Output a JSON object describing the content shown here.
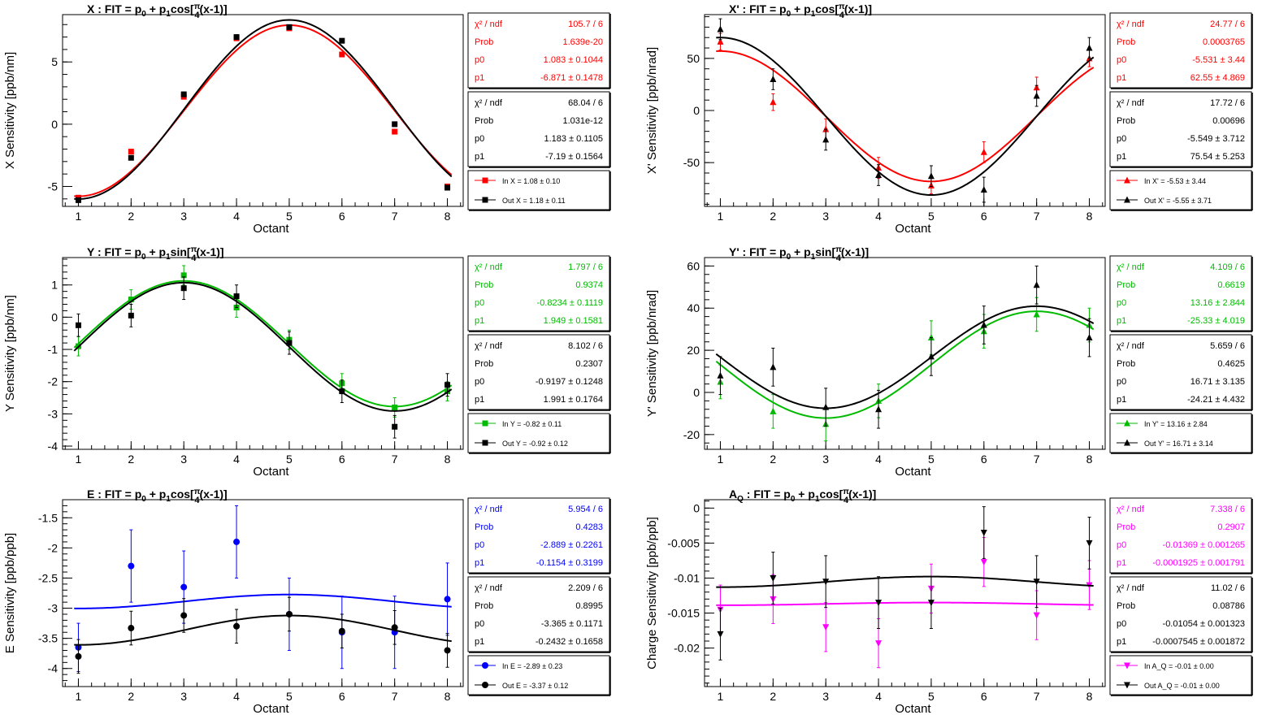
{
  "chart_data": [
    {
      "type": "scatter",
      "title": {
        "pre": "X : FIT = p",
        "s0": "0",
        "mid": " + p",
        "s1": "1",
        "fn": "cos[",
        "num": "π",
        "den": "4",
        "post": "(x-1)]"
      },
      "xlabel": "Octant",
      "ylabel": "X Sensitivity [ppb/nm]",
      "xlim": [
        0.7,
        8.3
      ],
      "ylim": [
        -6.6,
        8.8
      ],
      "yticks": [
        -5,
        0,
        5
      ],
      "ytick_labels": [
        "-5",
        "0",
        "5"
      ],
      "xticks": [
        1,
        2,
        3,
        4,
        5,
        6,
        7,
        8
      ],
      "xtick_labels": [
        "1",
        "2",
        "3",
        "4",
        "5",
        "6",
        "7",
        "8"
      ],
      "marker": "square",
      "series": [
        {
          "color": "#ff0000",
          "x": [
            1,
            2,
            3,
            4,
            5,
            6,
            7,
            8
          ],
          "y": [
            -5.9,
            -2.2,
            2.2,
            6.9,
            7.7,
            5.6,
            -0.6,
            -5.0
          ],
          "err": [
            0.15,
            0.15,
            0.15,
            0.15,
            0.15,
            0.15,
            0.15,
            0.15
          ],
          "fit": {
            "func": "cos",
            "p0": 1.083,
            "p1": -6.871
          },
          "stats": [
            [
              "χ² / ndf",
              "105.7 / 6"
            ],
            [
              "Prob",
              "1.639e-20"
            ],
            [
              "p0",
              "1.083 ± 0.1044"
            ],
            [
              "p1",
              "-6.871 ± 0.1478"
            ]
          ],
          "legend": "In X = 1.08 ± 0.10"
        },
        {
          "color": "#000000",
          "x": [
            1,
            2,
            3,
            4,
            5,
            6,
            7,
            8
          ],
          "y": [
            -6.1,
            -2.7,
            2.4,
            7.0,
            7.8,
            6.7,
            0.0,
            -5.1
          ],
          "err": [
            0.18,
            0.18,
            0.18,
            0.18,
            0.18,
            0.18,
            0.18,
            0.18
          ],
          "fit": {
            "func": "cos",
            "p0": 1.183,
            "p1": -7.19
          },
          "stats": [
            [
              "χ² / ndf",
              "68.04 / 6"
            ],
            [
              "Prob",
              "1.031e-12"
            ],
            [
              "p0",
              "1.183 ± 0.1105"
            ],
            [
              "p1",
              "-7.19 ± 0.1564"
            ]
          ],
          "legend": "Out X = 1.18 ± 0.11"
        }
      ]
    },
    {
      "type": "scatter",
      "title": {
        "pre": "X' : FIT = p",
        "s0": "0",
        "mid": " + p",
        "s1": "1",
        "fn": "cos[",
        "num": "π",
        "den": "4",
        "post": "(x-1)]"
      },
      "xlabel": "Octant",
      "ylabel": "X' Sensitivity [ppb/nrad]",
      "xlim": [
        0.7,
        8.3
      ],
      "ylim": [
        -92,
        92
      ],
      "yticks": [
        -50,
        0,
        50
      ],
      "ytick_labels": [
        "-50",
        "0",
        "50"
      ],
      "xticks": [
        1,
        2,
        3,
        4,
        5,
        6,
        7,
        8
      ],
      "xtick_labels": [
        "1",
        "2",
        "3",
        "4",
        "5",
        "6",
        "7",
        "8"
      ],
      "marker": "triangle-up",
      "series": [
        {
          "color": "#ff0000",
          "x": [
            1,
            2,
            3,
            4,
            5,
            6,
            7,
            8
          ],
          "y": [
            66,
            8,
            -18,
            -55,
            -72,
            -40,
            22,
            50
          ],
          "err": [
            8,
            8,
            10,
            10,
            8,
            10,
            10,
            8
          ],
          "fit": {
            "func": "cos",
            "p0": -5.531,
            "p1": 62.55
          },
          "stats": [
            [
              "χ² / ndf",
              "24.77 / 6"
            ],
            [
              "Prob",
              "0.0003765"
            ],
            [
              "p0",
              "-5.531 ± 3.44"
            ],
            [
              "p1",
              "62.55 ± 4.869"
            ]
          ],
          "legend": "In X' = -5.53 ± 3.44"
        },
        {
          "color": "#000000",
          "x": [
            1,
            2,
            3,
            4,
            5,
            6,
            7,
            8
          ],
          "y": [
            78,
            30,
            -28,
            -62,
            -63,
            -76,
            14,
            60
          ],
          "err": [
            10,
            10,
            10,
            10,
            10,
            12,
            10,
            10
          ],
          "fit": {
            "func": "cos",
            "p0": -5.549,
            "p1": 75.54
          },
          "stats": [
            [
              "χ² / ndf",
              "17.72 / 6"
            ],
            [
              "Prob",
              "0.00696"
            ],
            [
              "p0",
              "-5.549 ± 3.712"
            ],
            [
              "p1",
              "75.54 ± 5.253"
            ]
          ],
          "legend": "Out X' = -5.55 ± 3.71"
        }
      ]
    },
    {
      "type": "scatter",
      "title": {
        "pre": "Y : FIT = p",
        "s0": "0",
        "mid": " + p",
        "s1": "1",
        "fn": "sin[",
        "num": "π",
        "den": "4",
        "post": "(x-1)]"
      },
      "xlabel": "Octant",
      "ylabel": "Y Sensitivity [ppb/nm]",
      "xlim": [
        0.7,
        8.3
      ],
      "ylim": [
        -4.1,
        1.85
      ],
      "yticks": [
        -4,
        -3,
        -2,
        -1,
        0,
        1
      ],
      "ytick_labels": [
        "-4",
        "-3",
        "-2",
        "-1",
        "0",
        "1"
      ],
      "xticks": [
        1,
        2,
        3,
        4,
        5,
        6,
        7,
        8
      ],
      "xtick_labels": [
        "1",
        "2",
        "3",
        "4",
        "5",
        "6",
        "7",
        "8"
      ],
      "marker": "square",
      "series": [
        {
          "color": "#00bb00",
          "x": [
            1,
            2,
            3,
            4,
            5,
            6,
            7,
            8
          ],
          "y": [
            -0.9,
            0.55,
            1.3,
            0.3,
            -0.7,
            -2.05,
            -2.8,
            -2.3
          ],
          "err": [
            0.3,
            0.3,
            0.3,
            0.3,
            0.3,
            0.3,
            0.3,
            0.3
          ],
          "fit": {
            "func": "sin",
            "p0": -0.8234,
            "p1": 1.949
          },
          "stats": [
            [
              "χ² / ndf",
              "1.797 / 6"
            ],
            [
              "Prob",
              "0.9374"
            ],
            [
              "p0",
              "-0.8234 ± 0.1119"
            ],
            [
              "p1",
              "1.949 ± 0.1581"
            ]
          ],
          "legend": "In Y = -0.82 ± 0.11"
        },
        {
          "color": "#000000",
          "x": [
            1,
            2,
            3,
            4,
            5,
            6,
            7,
            8
          ],
          "y": [
            -0.25,
            0.05,
            0.9,
            0.65,
            -0.8,
            -2.3,
            -3.4,
            -2.1
          ],
          "err": [
            0.35,
            0.35,
            0.35,
            0.35,
            0.35,
            0.35,
            0.35,
            0.35
          ],
          "fit": {
            "func": "sin",
            "p0": -0.9197,
            "p1": 1.991
          },
          "stats": [
            [
              "χ² / ndf",
              "8.102 / 6"
            ],
            [
              "Prob",
              "0.2307"
            ],
            [
              "p0",
              "-0.9197 ± 0.1248"
            ],
            [
              "p1",
              "1.991 ± 0.1764"
            ]
          ],
          "legend": "Out Y = -0.92 ± 0.12"
        }
      ]
    },
    {
      "type": "scatter",
      "title": {
        "pre": "Y' : FIT = p",
        "s0": "0",
        "mid": " + p",
        "s1": "1",
        "fn": "sin[",
        "num": "π",
        "den": "4",
        "post": "(x-1)]"
      },
      "xlabel": "Octant",
      "ylabel": "Y' Sensitivity [ppb/nrad]",
      "xlim": [
        0.7,
        8.3
      ],
      "ylim": [
        -27,
        64
      ],
      "yticks": [
        -20,
        0,
        20,
        40,
        60
      ],
      "ytick_labels": [
        "-20",
        "0",
        "20",
        "40",
        "60"
      ],
      "xticks": [
        1,
        2,
        3,
        4,
        5,
        6,
        7,
        8
      ],
      "xtick_labels": [
        "1",
        "2",
        "3",
        "4",
        "5",
        "6",
        "7",
        "8"
      ],
      "marker": "triangle-up",
      "series": [
        {
          "color": "#00bb00",
          "x": [
            1,
            2,
            3,
            4,
            5,
            6,
            7,
            8
          ],
          "y": [
            5,
            -9,
            -15,
            -4,
            26,
            29,
            37,
            32
          ],
          "err": [
            8,
            8,
            8,
            8,
            8,
            8,
            8,
            8
          ],
          "fit": {
            "func": "sin",
            "p0": 13.16,
            "p1": -25.33
          },
          "stats": [
            [
              "χ² / ndf",
              "4.109 / 6"
            ],
            [
              "Prob",
              "0.6619"
            ],
            [
              "p0",
              "13.16 ± 2.844"
            ],
            [
              "p1",
              "-25.33 ± 4.019"
            ]
          ],
          "legend": "In Y' = 13.16 ± 2.84"
        },
        {
          "color": "#000000",
          "x": [
            1,
            2,
            3,
            4,
            5,
            6,
            7,
            8
          ],
          "y": [
            8,
            12,
            -7,
            -8,
            17,
            32,
            51,
            26
          ],
          "err": [
            9,
            9,
            9,
            9,
            9,
            9,
            9,
            9
          ],
          "fit": {
            "func": "sin",
            "p0": 16.71,
            "p1": -24.21
          },
          "stats": [
            [
              "χ² / ndf",
              "5.659 / 6"
            ],
            [
              "Prob",
              "0.4625"
            ],
            [
              "p0",
              "16.71 ± 3.135"
            ],
            [
              "p1",
              "-24.21 ± 4.432"
            ]
          ],
          "legend": "Out Y' = 16.71 ± 3.14"
        }
      ]
    },
    {
      "type": "scatter",
      "title": {
        "pre": "E : FIT = p",
        "s0": "0",
        "mid": " + p",
        "s1": "1",
        "fn": "cos[",
        "num": "π",
        "den": "4",
        "post": "(x-1)]"
      },
      "xlabel": "Octant",
      "ylabel": "E Sensitivity [ppb/ppb]",
      "xlim": [
        0.7,
        8.3
      ],
      "ylim": [
        -4.3,
        -1.2
      ],
      "yticks": [
        -4,
        -3.5,
        -3,
        -2.5,
        -2,
        -1.5
      ],
      "ytick_labels": [
        "-4",
        "-3.5",
        "-3",
        "-2.5",
        "-2",
        "-1.5"
      ],
      "xticks": [
        1,
        2,
        3,
        4,
        5,
        6,
        7,
        8
      ],
      "xtick_labels": [
        "1",
        "2",
        "3",
        "4",
        "5",
        "6",
        "7",
        "8"
      ],
      "marker": "circle",
      "series": [
        {
          "color": "#0000ff",
          "x": [
            1,
            2,
            3,
            4,
            5,
            6,
            7,
            8
          ],
          "y": [
            -3.65,
            -2.3,
            -2.65,
            -1.9,
            -3.1,
            -3.4,
            -3.4,
            -2.85
          ],
          "err": [
            0.4,
            0.6,
            0.6,
            0.6,
            0.6,
            0.6,
            0.6,
            0.6
          ],
          "fit": {
            "func": "cos",
            "p0": -2.889,
            "p1": -0.1154
          },
          "stats": [
            [
              "χ² / ndf",
              "5.954 / 6"
            ],
            [
              "Prob",
              "0.4283"
            ],
            [
              "p0",
              "-2.889 ± 0.2261"
            ],
            [
              "p1",
              "-0.1154 ± 0.3199"
            ]
          ],
          "legend": "In E = -2.89 ± 0.23"
        },
        {
          "color": "#000000",
          "x": [
            1,
            2,
            3,
            4,
            5,
            6,
            7,
            8
          ],
          "y": [
            -3.8,
            -3.33,
            -3.12,
            -3.3,
            -3.1,
            -3.38,
            -3.32,
            -3.7
          ],
          "err": [
            0.28,
            0.28,
            0.28,
            0.28,
            0.28,
            0.28,
            0.28,
            0.28
          ],
          "fit": {
            "func": "cos",
            "p0": -3.365,
            "p1": -0.2432
          },
          "stats": [
            [
              "χ² / ndf",
              "2.209 / 6"
            ],
            [
              "Prob",
              "0.8995"
            ],
            [
              "p0",
              "-3.365 ± 0.1171"
            ],
            [
              "p1",
              "-0.2432 ± 0.1658"
            ]
          ],
          "legend": "Out E = -3.37 ± 0.12"
        }
      ]
    },
    {
      "type": "scatter",
      "title": {
        "pre": "A",
        "presub": "Q",
        "pre2": " : FIT = p",
        "s0": "0",
        "mid": " + p",
        "s1": "1",
        "fn": "cos[",
        "num": "π",
        "den": "4",
        "post": "(x-1)]"
      },
      "xlabel": "Octant",
      "ylabel": "Charge Sensitivity [ppb/ppb]",
      "xlim": [
        0.7,
        8.3
      ],
      "ylim": [
        -0.0255,
        0.0012
      ],
      "yticks": [
        -0.02,
        -0.015,
        -0.01,
        -0.005,
        0
      ],
      "ytick_labels": [
        "-0.02",
        "-0.015",
        "-0.01",
        "-0.005",
        "0"
      ],
      "xticks": [
        1,
        2,
        3,
        4,
        5,
        6,
        7,
        8
      ],
      "xtick_labels": [
        "1",
        "2",
        "3",
        "4",
        "5",
        "6",
        "7",
        "8"
      ],
      "marker": "triangle-down",
      "series": [
        {
          "color": "#ff00ff",
          "x": [
            1,
            2,
            3,
            4,
            5,
            6,
            7,
            8
          ],
          "y": [
            -0.0145,
            -0.013,
            -0.017,
            -0.0193,
            -0.0115,
            -0.0077,
            -0.0153,
            -0.011
          ],
          "err": [
            0.0035,
            0.0035,
            0.0035,
            0.0035,
            0.0035,
            0.0035,
            0.0035,
            0.0035
          ],
          "fit": {
            "func": "cos",
            "p0": -0.01369,
            "p1": -0.0001925
          },
          "stats": [
            [
              "χ² / ndf",
              "7.338 / 6"
            ],
            [
              "Prob",
              "0.2907"
            ],
            [
              "p0",
              "-0.01369 ± 0.001265"
            ],
            [
              "p1",
              "-0.0001925 ± 0.001791"
            ]
          ],
          "legend": "In A_Q = -0.01 ± 0.00"
        },
        {
          "color": "#000000",
          "x": [
            1,
            2,
            3,
            4,
            5,
            6,
            7,
            8
          ],
          "y": [
            -0.018,
            -0.01,
            -0.0105,
            -0.0135,
            -0.0135,
            -0.0035,
            -0.0105,
            -0.005
          ],
          "err": [
            0.0037,
            0.0037,
            0.0037,
            0.0037,
            0.0037,
            0.0037,
            0.0037,
            0.0037
          ],
          "fit": {
            "func": "cos",
            "p0": -0.01054,
            "p1": -0.0007545
          },
          "stats": [
            [
              "χ² / ndf",
              "11.02 / 6"
            ],
            [
              "Prob",
              "0.08786"
            ],
            [
              "p0",
              "-0.01054 ± 0.001323"
            ],
            [
              "p1",
              "-0.0007545 ± 0.001872"
            ]
          ],
          "legend": "Out A_Q = -0.01 ± 0.00"
        }
      ]
    }
  ]
}
